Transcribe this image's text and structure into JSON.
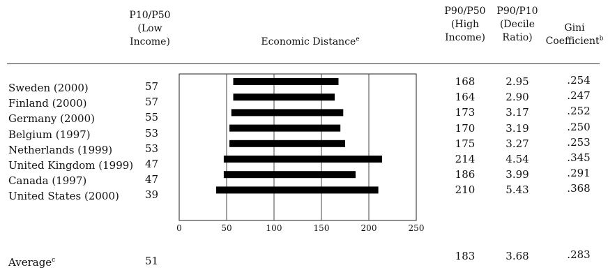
{
  "headers": {
    "p10p50": [
      "P10/P50",
      "(Low",
      "Income)"
    ],
    "economic_distance": "Economic Distance",
    "economic_distance_note": "e",
    "p90p50": [
      "P90/P50",
      "(High",
      "Income)"
    ],
    "p90p10": [
      "P90/P10",
      "(Decile",
      "Ratio)"
    ],
    "gini": [
      "Gini",
      "Coefficient"
    ],
    "gini_note": "b"
  },
  "rows": [
    {
      "country": "Sweden (2000)",
      "p10p50": "57",
      "p90p50": "168",
      "p90p10": "2.95",
      "gini": ".254"
    },
    {
      "country": "Finland (2000)",
      "p10p50": "57",
      "p90p50": "164",
      "p90p10": "2.90",
      "gini": ".247"
    },
    {
      "country": "Germany (2000)",
      "p10p50": "55",
      "p90p50": "173",
      "p90p10": "3.17",
      "gini": ".252"
    },
    {
      "country": "Belgium (1997)",
      "p10p50": "53",
      "p90p50": "170",
      "p90p10": "3.19",
      "gini": ".250"
    },
    {
      "country": "Netherlands (1999)",
      "p10p50": "53",
      "p90p50": "175",
      "p90p10": "3.27",
      "gini": ".253"
    },
    {
      "country": "United Kingdom (1999)",
      "p10p50": "47",
      "p90p50": "214",
      "p90p10": "4.54",
      "gini": ".345"
    },
    {
      "country": "Canada (1997)",
      "p10p50": "47",
      "p90p50": "186",
      "p90p10": "3.99",
      "gini": ".291"
    },
    {
      "country": "United States (2000)",
      "p10p50": "39",
      "p90p50": "210",
      "p90p10": "5.43",
      "gini": ".368"
    }
  ],
  "average": {
    "label": "Average",
    "note": "c",
    "p10p50": "51",
    "p90p50": "183",
    "p90p10": "3.68",
    "gini": ".283"
  },
  "chart_data": {
    "type": "bar",
    "orientation": "horizontal-range",
    "categories": [
      "Sweden (2000)",
      "Finland (2000)",
      "Germany (2000)",
      "Belgium (1997)",
      "Netherlands (1999)",
      "United Kingdom (1999)",
      "Canada (1997)",
      "United States (2000)"
    ],
    "series": [
      {
        "values": [
          [
            57,
            168
          ],
          [
            57,
            164
          ],
          [
            55,
            173
          ],
          [
            53,
            170
          ],
          [
            53,
            175
          ],
          [
            47,
            214
          ],
          [
            47,
            186
          ],
          [
            39,
            210
          ]
        ]
      }
    ],
    "xlim": [
      0,
      250
    ],
    "xticks": [
      0,
      50,
      100,
      150,
      200,
      250
    ],
    "grid": "vertical at 50, 100, 150, 200",
    "title": "Economic Distance"
  }
}
